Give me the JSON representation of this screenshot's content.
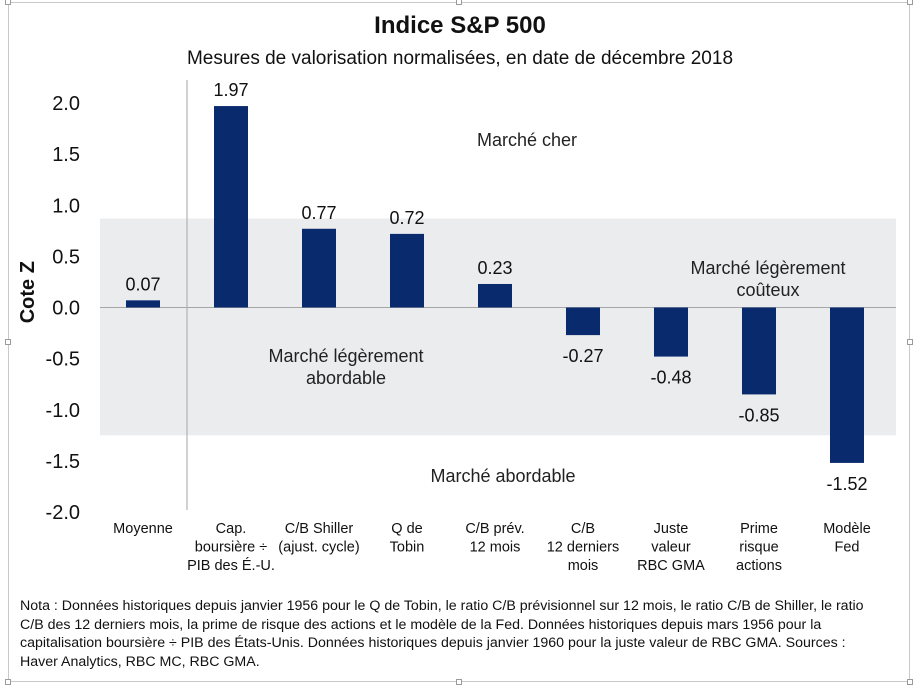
{
  "chart_data": {
    "type": "bar",
    "title": "Indice S&P 500",
    "subtitle": "Mesures de valorisation normalisées, en date de décembre 2018",
    "ylabel": "Cote Z",
    "xlabel": "",
    "ylim": [
      -2.0,
      2.0
    ],
    "yticks": [
      "2.0",
      "1.5",
      "1.0",
      "0.5",
      "0.0",
      "-0.5",
      "-1.0",
      "-1.5",
      "-2.0"
    ],
    "ytick_values": [
      2.0,
      1.5,
      1.0,
      0.5,
      0.0,
      -0.5,
      -1.0,
      -1.5,
      -2.0
    ],
    "band": [
      -1.25,
      0.87
    ],
    "categories": [
      [
        "Moyenne"
      ],
      [
        "Cap.",
        "boursière ÷",
        "PIB des É.-U."
      ],
      [
        "C/B Shiller",
        "(ajust. cycle)"
      ],
      [
        "Q de",
        "Tobin"
      ],
      [
        "C/B prév.",
        "12 mois"
      ],
      [
        "C/B",
        "12 derniers",
        "mois"
      ],
      [
        "Juste",
        "valeur",
        "RBC GMA"
      ],
      [
        "Prime",
        "risque",
        "actions"
      ],
      [
        "Modèle",
        "Fed"
      ]
    ],
    "values": [
      0.07,
      1.97,
      0.77,
      0.72,
      0.23,
      -0.27,
      -0.48,
      -0.85,
      -1.52
    ],
    "value_labels": [
      "0.07",
      "1.97",
      "0.77",
      "0.72",
      "0.23",
      "-0.27",
      "-0.48",
      "-0.85",
      "-1.52"
    ],
    "annotations": [
      {
        "lines": [
          "Marché cher"
        ]
      },
      {
        "lines": [
          "Marché légèrement",
          "coûteux"
        ]
      },
      {
        "lines": [
          "Marché légèrement",
          "abordable"
        ]
      },
      {
        "lines": [
          "Marché abordable"
        ]
      }
    ],
    "colors": {
      "bar": "#0a2a6e",
      "band": "#ebecee",
      "axis": "#a6a6a6"
    }
  },
  "note": "Nota : Données historiques depuis janvier 1956 pour le Q de Tobin, le ratio C/B prévisionnel sur 12 mois, le ratio C/B de Shiller, le ratio C/B des 12 derniers mois, la prime de risque des actions et le modèle de la Fed. Données historiques depuis mars 1956 pour la capitalisation boursière ÷ PIB des États-Unis. Données historiques depuis janvier 1960 pour la juste valeur de RBC GMA. Sources : Haver Analytics, RBC MC, RBC GMA."
}
